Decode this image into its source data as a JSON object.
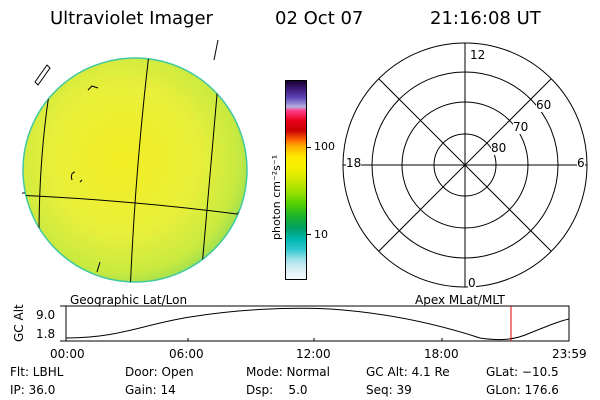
{
  "header": {
    "title": "Ultraviolet Imager",
    "date": "02 Oct 07",
    "time": "21:16:08 UT"
  },
  "colorbar": {
    "ticks": [
      "100",
      "10"
    ],
    "units_label": "photon cm⁻²s⁻¹"
  },
  "left_panel": {
    "label": "Geographic Lat/Lon"
  },
  "polar_plot": {
    "label": "Apex MLat/MLT",
    "mlt_labels": [
      "12",
      "18",
      "6",
      "0"
    ],
    "lat_labels": [
      "60",
      "70",
      "80"
    ]
  },
  "altitude_plot": {
    "ylabel": "GC Alt",
    "yticks": [
      "9.0",
      "1.8"
    ],
    "xticks": [
      "00:00",
      "06:00",
      "12:00",
      "18:00",
      "23:59"
    ]
  },
  "footer": {
    "flt": "Flt: LBHL",
    "ip": "IP: 36.0",
    "door": "Door: Open",
    "gain": "Gain: 14",
    "mode": "Mode: Normal",
    "dsp": "Dsp:    5.0",
    "gcalt": "GC Alt: 4.1 Re",
    "seq": "Seq: 39",
    "glat": "GLat: −10.5",
    "glon": "GLon: 176.6"
  }
}
